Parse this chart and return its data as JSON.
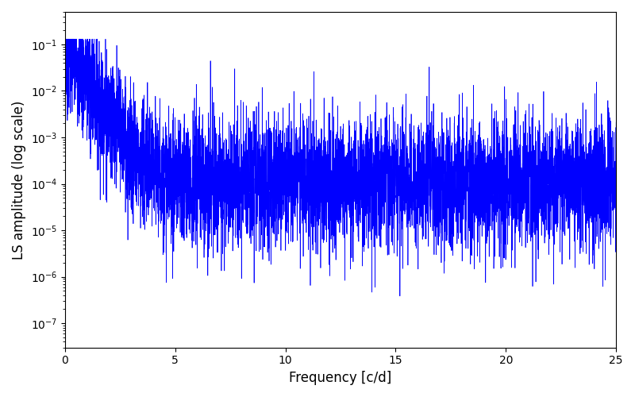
{
  "xlabel": "Frequency [c/d]",
  "ylabel": "LS amplitude (log scale)",
  "line_color": "#0000ff",
  "xlim": [
    0,
    25
  ],
  "ylim": [
    3e-08,
    0.5
  ],
  "xticks": [
    0,
    5,
    10,
    15,
    20,
    25
  ],
  "figsize": [
    8.0,
    5.0
  ],
  "dpi": 100,
  "seed": 7,
  "n_points": 6000,
  "peak_amplitude": 0.11,
  "noise_floor": 0.00011,
  "decay_rate": 1.8,
  "log_noise_sigma": 1.6
}
